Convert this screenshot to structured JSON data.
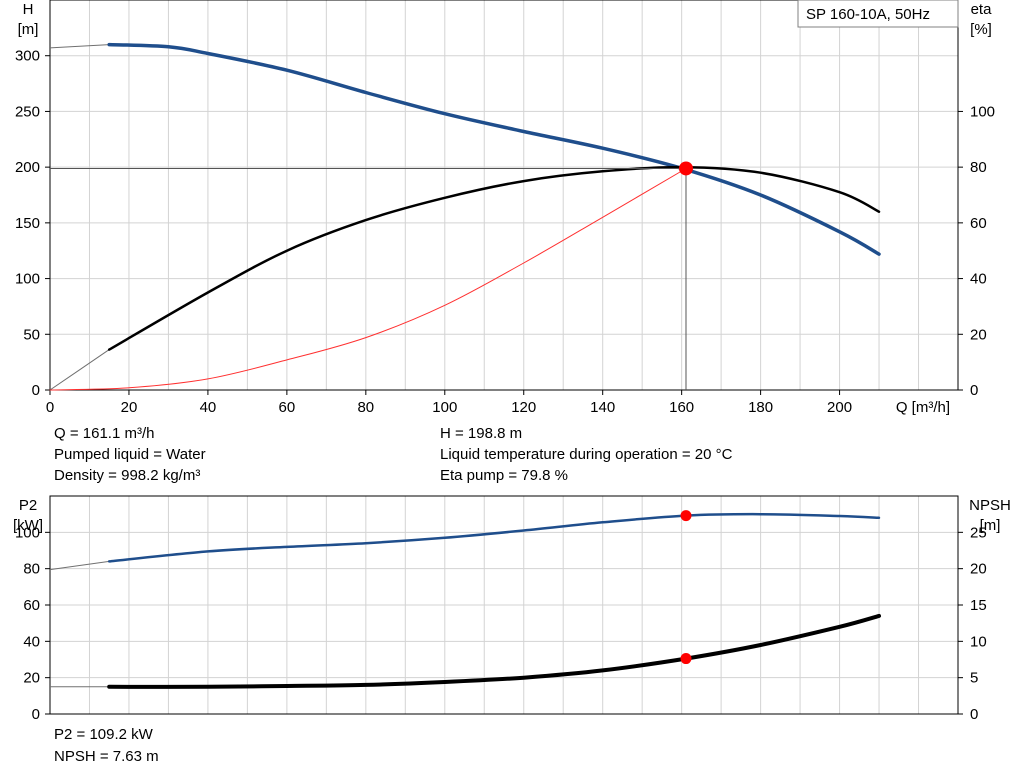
{
  "chart_data": [
    {
      "type": "line",
      "legend_box": "SP 160-10A, 50Hz",
      "xlabel": "Q [m³/h]",
      "ylabel_left": [
        "H",
        "[m]"
      ],
      "ylabel_right": [
        "eta",
        "[%]"
      ],
      "xlim": [
        0,
        230
      ],
      "ylim_left": [
        0,
        350
      ],
      "ylim_right": [
        0,
        140
      ],
      "x_ticks": [
        0,
        20,
        40,
        60,
        80,
        100,
        120,
        140,
        160,
        180,
        200
      ],
      "y_ticks_left": [
        0,
        50,
        100,
        150,
        200,
        250,
        300
      ],
      "y_ticks_right": [
        0,
        20,
        40,
        60,
        80,
        100
      ],
      "grid": true,
      "series": [
        {
          "axis": "left",
          "color": "#1f4e8c",
          "width": 3.5,
          "x": [
            15,
            30,
            40,
            60,
            80,
            100,
            120,
            140,
            160,
            180,
            200,
            210
          ],
          "values": [
            310,
            308,
            302,
            287,
            267,
            248,
            232,
            217,
            199,
            175,
            142,
            122
          ],
          "extension": {
            "x": [
              0,
              15
            ],
            "values": [
              307,
              310
            ]
          }
        },
        {
          "axis": "right",
          "color": "#000000",
          "width": 2.5,
          "x": [
            15,
            40,
            60,
            80,
            100,
            120,
            140,
            160,
            180,
            200,
            210
          ],
          "values": [
            14.5,
            35,
            50,
            61,
            69,
            75,
            78.5,
            80,
            78,
            71,
            64
          ],
          "extension": {
            "x": [
              0,
              15
            ],
            "values": [
              0,
              14.5
            ]
          }
        },
        {
          "axis": "left",
          "color": "#ff3030",
          "width": 1,
          "x": [
            0,
            20,
            40,
            60,
            80,
            100,
            120,
            140,
            161.1
          ],
          "values": [
            0,
            2,
            10,
            27,
            47,
            76,
            114,
            155,
            198.8
          ]
        }
      ],
      "operating_point": {
        "x": 161.1,
        "y": 198.8
      },
      "annotations_left": [
        "Q = 161.1 m³/h",
        "Pumped liquid = Water",
        "Density = 998.2 kg/m³"
      ],
      "annotations_right": [
        "H = 198.8 m",
        "Liquid temperature during operation = 20 °C",
        "Eta pump = 79.8 %"
      ]
    },
    {
      "type": "line",
      "ylabel_left": [
        "P2",
        "[kW]"
      ],
      "ylabel_right": [
        "NPSH",
        "[m]"
      ],
      "xlim": [
        0,
        230
      ],
      "ylim_left": [
        0,
        120
      ],
      "ylim_right": [
        0,
        30
      ],
      "y_ticks_left": [
        0,
        20,
        40,
        60,
        80,
        100
      ],
      "y_ticks_right": [
        0,
        5,
        10,
        15,
        20,
        25
      ],
      "grid": true,
      "series": [
        {
          "axis": "left",
          "color": "#1f4e8c",
          "width": 2.5,
          "x": [
            15,
            40,
            60,
            80,
            100,
            120,
            140,
            161.1,
            180,
            200,
            210
          ],
          "values": [
            84,
            89.5,
            92,
            94,
            97,
            101,
            105.5,
            109.2,
            110,
            109,
            108
          ],
          "extension": {
            "x": [
              0,
              15
            ],
            "values": [
              79.5,
              84
            ]
          }
        },
        {
          "axis": "right",
          "color": "#000000",
          "width": 4,
          "x": [
            15,
            40,
            60,
            80,
            100,
            120,
            140,
            161.1,
            180,
            200,
            210
          ],
          "values": [
            3.75,
            3.75,
            3.85,
            4.0,
            4.4,
            5.0,
            6.0,
            7.63,
            9.5,
            12.0,
            13.5
          ],
          "extension": {
            "x": [
              0,
              15
            ],
            "values": [
              3.75,
              3.75
            ]
          }
        }
      ],
      "operating_points": [
        {
          "axis": "left",
          "x": 161.1,
          "y": 109.2
        },
        {
          "axis": "right",
          "x": 161.1,
          "y": 7.63
        }
      ],
      "annotations": [
        "P2 = 109.2 kW",
        "NPSH = 7.63 m"
      ]
    }
  ]
}
